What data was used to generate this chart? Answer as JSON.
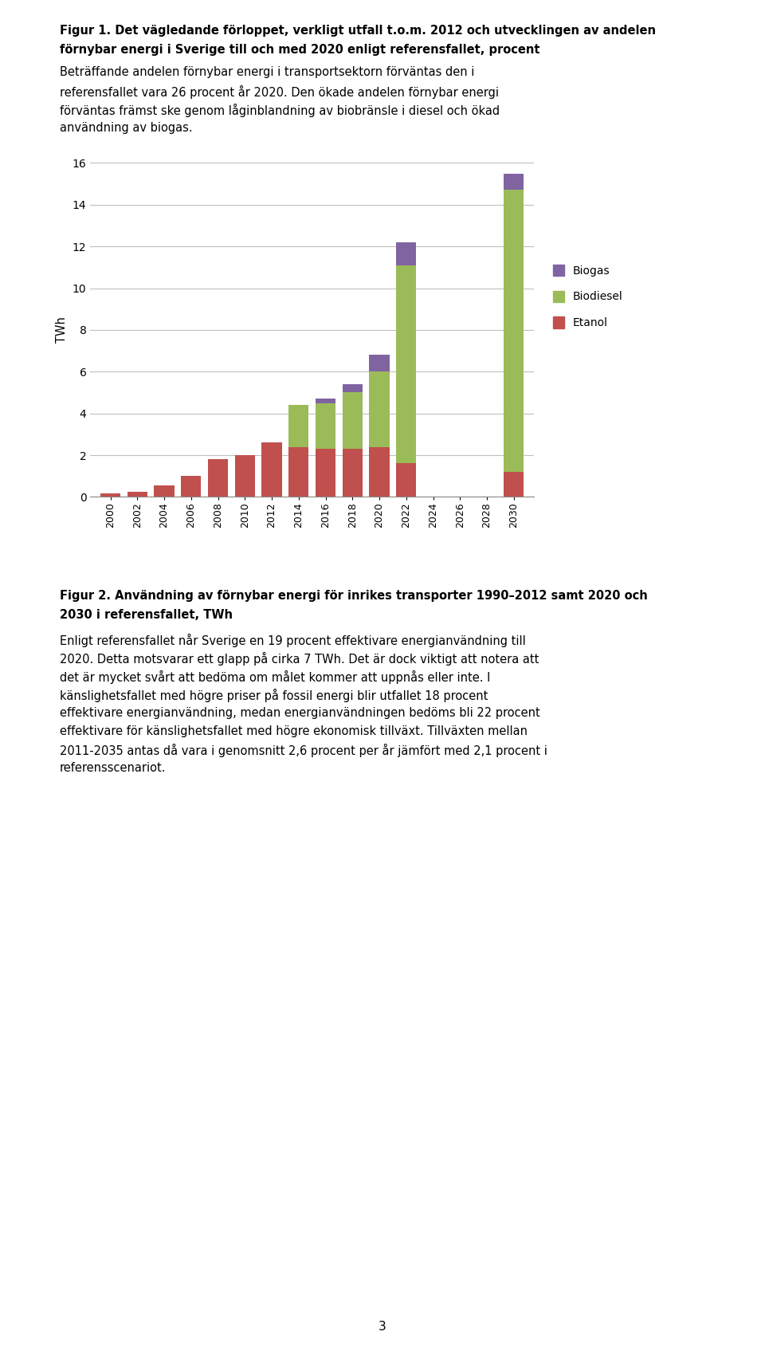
{
  "title_fig1_line1": "Figur 1. Det vägledande förloppet, verkligt utfall t.o.m. 2012 och utvecklingen av andelen",
  "title_fig1_line2": "förnybar energi i Sverige till och med 2020 enligt referensfallet, procent",
  "body_text1_line1": "Beträffande andelen förnybar energi i transportsektorn förväntas den i",
  "body_text1_line2": "referensfallet vara 26 procent år 2020. Den ökade andelen förnybar energi",
  "body_text1_line3": "förväntas främst ske genom låginblandning av biobränsle i diesel och ökad",
  "body_text1_line4": "användning av biogas.",
  "years": [
    2000,
    2002,
    2004,
    2006,
    2008,
    2010,
    2012,
    2014,
    2016,
    2018,
    2020,
    2022,
    2024,
    2026,
    2028,
    2030
  ],
  "etanol": [
    0.15,
    0.25,
    0.55,
    1.0,
    1.8,
    2.0,
    2.6,
    2.4,
    2.3,
    2.3,
    2.4,
    1.6,
    0.0,
    0.0,
    0.0,
    1.2
  ],
  "biodiesel": [
    0.0,
    0.0,
    0.0,
    0.0,
    0.0,
    0.0,
    0.0,
    2.0,
    2.2,
    2.7,
    3.6,
    9.5,
    0.0,
    0.0,
    0.0,
    13.5
  ],
  "biogas": [
    0.0,
    0.0,
    0.0,
    0.0,
    0.0,
    0.0,
    0.0,
    0.0,
    0.2,
    0.4,
    0.8,
    1.1,
    0.0,
    0.0,
    0.0,
    0.8
  ],
  "etanol_color": "#C0504D",
  "biodiesel_color": "#9BBB59",
  "biogas_color": "#8064A2",
  "ylabel": "TWh",
  "ylim": [
    0,
    16
  ],
  "yticks": [
    0,
    2,
    4,
    6,
    8,
    10,
    12,
    14,
    16
  ],
  "fig2_title_line1": "Figur 2. Användning av förnybar energi för inrikes transporter 1990–2012 samt 2020 och",
  "fig2_title_line2": "2030 i referensfallet, TWh",
  "body_text2_line1": "Enligt referensfallet når Sverige en 19 procent effektivare energianvändning till",
  "body_text2_line2": "2020. Detta motsvarar ett glapp på cirka 7 TWh. Det är dock viktigt att notera att",
  "body_text2_line3": "det är mycket svårt att bedöma om målet kommer att uppnås eller inte. I",
  "body_text2_line4": "känslighetsfallet med högre priser på fossil energi blir utfallet 18 procent",
  "body_text2_line5": "effektivare energianvändning, medan energianvändningen bedöms bli 22 procent",
  "body_text2_line6": "effektivare för känslighetsfallet med högre ekonomisk tillväxt. Tillväxten mellan",
  "body_text2_line7": "2011-2035 antas då vara i genomsnitt 2,6 procent per år jämfört med 2,1 procent i",
  "body_text2_line8": "referensscenariot.",
  "page_number": "3",
  "background_color": "#ffffff",
  "text_color": "#000000",
  "grid_color": "#C0C0C0",
  "bar_width": 1.5,
  "figsize": [
    9.6,
    17.1
  ],
  "dpi": 100
}
